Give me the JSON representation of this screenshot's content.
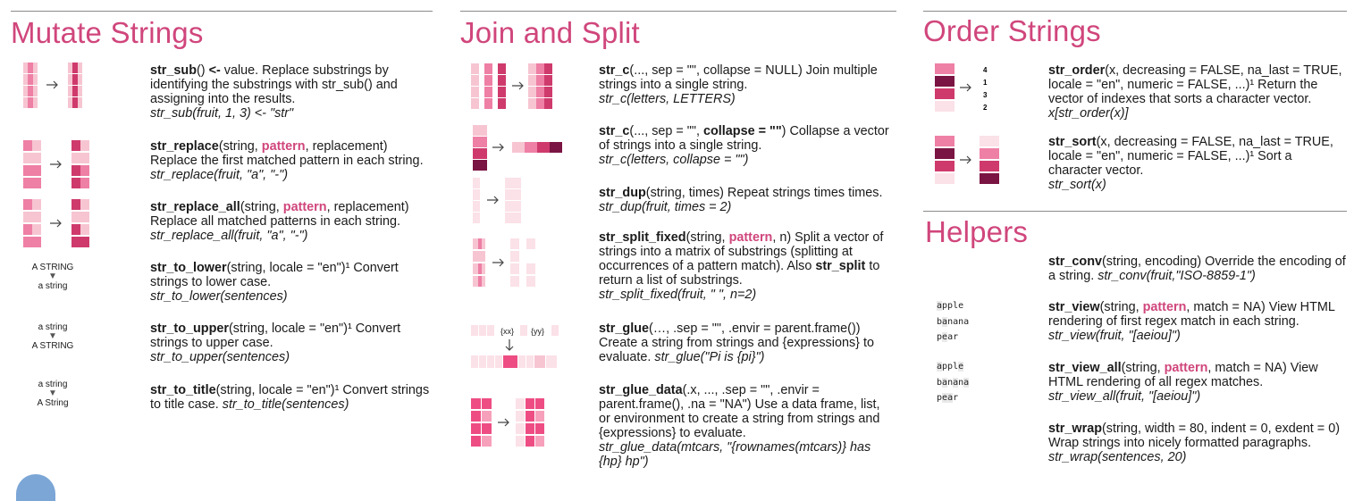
{
  "colors": {
    "accent": "#d0467c",
    "light": "#f7c5d2",
    "mid": "#ee7fa5",
    "dark": "#7a1442",
    "rule": "#8a8a8a"
  },
  "sections": {
    "mutate": "Mutate Strings",
    "join": "Join and Split",
    "order": "Order Strings",
    "helpers": "Helpers"
  },
  "mutate": {
    "sub": {
      "fn": "str_sub",
      "a1": "() ",
      "a2": "<-",
      "a3": " value. Replace substrings by identifying the substrings with str_sub() and assigning into the results.",
      "ex": "str_sub(fruit, 1, 3) <- \"str\""
    },
    "replace": {
      "fn": "str_replace",
      "a1": "(string, ",
      "pat": "pattern",
      "a2": ", replacement) Replace the first matched pattern in each string. ",
      "ex": "str_replace(fruit, \"a\", \"-\")"
    },
    "replace_all": {
      "fn": "str_replace_all",
      "a1": "(string, ",
      "pat": "pattern",
      "a2": ", replacement) Replace all matched patterns in each string. ",
      "ex": "str_replace_all(fruit, \"a\", \"-\")"
    },
    "to_lower": {
      "fn": "str_to_lower",
      "a1": "(string, locale = \"en\")¹ Convert strings to lower case.",
      "ex": "str_to_lower(sentences)",
      "from": "A STRING",
      "to": "a string"
    },
    "to_upper": {
      "fn": "str_to_upper",
      "a1": "(string, locale = \"en\")¹ Convert strings to upper case.",
      "ex": "str_to_upper(sentences)",
      "from": "a string",
      "to": "A STRING"
    },
    "to_title": {
      "fn": "str_to_title",
      "a1": "(string, locale = \"en\")¹ Convert strings to title case. ",
      "ex": "str_to_title(sentences)",
      "from": "a string",
      "to": "A String"
    }
  },
  "join": {
    "c": {
      "fn": "str_c",
      "a1": "(..., sep = \"\", collapse = NULL) Join multiple strings into a single string.",
      "ex": "str_c(letters, LETTERS)"
    },
    "c2": {
      "fn": "str_c",
      "a1": "(..., sep = \"\", ",
      "b": "collapse = \"\"",
      "a2": ") Collapse a vector of strings into a single string.",
      "ex": "str_c(letters, collapse = \"\")"
    },
    "dup": {
      "fn": "str_dup",
      "a1": "(string, times) Repeat strings times times. ",
      "ex": "str_dup(fruit, times = 2)"
    },
    "split_fixed": {
      "fn": "str_split_fixed",
      "a1": "(string, ",
      "pat": "pattern",
      "a2": ", n) Split a vector of strings into a matrix of substrings (splitting at occurrences of a pattern match). Also ",
      "fn2": "str_split",
      "a3": " to return a list of substrings.",
      "ex": "str_split_fixed(fruit, \" \", n=2)"
    },
    "glue": {
      "fn": "str_glue",
      "a1": "(…, .sep = \"\", .envir = parent.frame()) Create a string from strings and {expressions} to evaluate. ",
      "ex": "str_glue(\"Pi is {pi}\")",
      "tok1": "{xx}",
      "tok2": "{yy}"
    },
    "glue_data": {
      "fn": "str_glue_data",
      "a1": "(.x, ..., .sep = \"\", .envir = parent.frame(), .na = \"NA\") Use a data frame, list, or environment to create a string from strings and {expressions} to evaluate.",
      "ex": "str_glue_data(mtcars, \"{rownames(mtcars)} has {hp} hp\")"
    }
  },
  "order": {
    "order": {
      "fn": "str_order",
      "a1": "(x, decreasing = FALSE, na_last = TRUE, locale = \"en\", numeric = FALSE, ...)¹ Return the vector of indexes that sorts a character vector. ",
      "ex": "x[str_order(x)]",
      "idx": [
        "4",
        "1",
        "3",
        "2"
      ]
    },
    "sort": {
      "fn": "str_sort",
      "a1": "(x, decreasing = FALSE, na_last = TRUE, locale = \"en\", numeric = FALSE, ...)¹ Sort a character vector.",
      "ex": "str_sort(x)"
    }
  },
  "helpers": {
    "conv": {
      "fn": "str_conv",
      "a1": "(string, encoding) Override the encoding of a string. ",
      "ex": "str_conv(fruit,\"ISO-8859-1\")"
    },
    "view": {
      "fn": "str_view",
      "a1": "(string, ",
      "pat": "pattern",
      "a2": ", match = NA) View HTML rendering of first regex match in each string. ",
      "ex": "str_view(fruit, \"[aeiou]\")",
      "words": [
        "apple",
        "banana",
        "pear"
      ]
    },
    "view_all": {
      "fn": "str_view_all",
      "a1": "(string, ",
      "pat": "pattern",
      "a2": ", match = NA) View HTML rendering of all regex matches.",
      "ex": "str_view_all(fruit, \"[aeiou]\")",
      "words": [
        "apple",
        "banana",
        "pear"
      ]
    },
    "wrap": {
      "fn": "str_wrap",
      "a1": "(string, width = 80, indent = 0, exdent = 0) Wrap strings into nicely formatted paragraphs. ",
      "ex": "str_wrap(sentences, 20)"
    }
  }
}
